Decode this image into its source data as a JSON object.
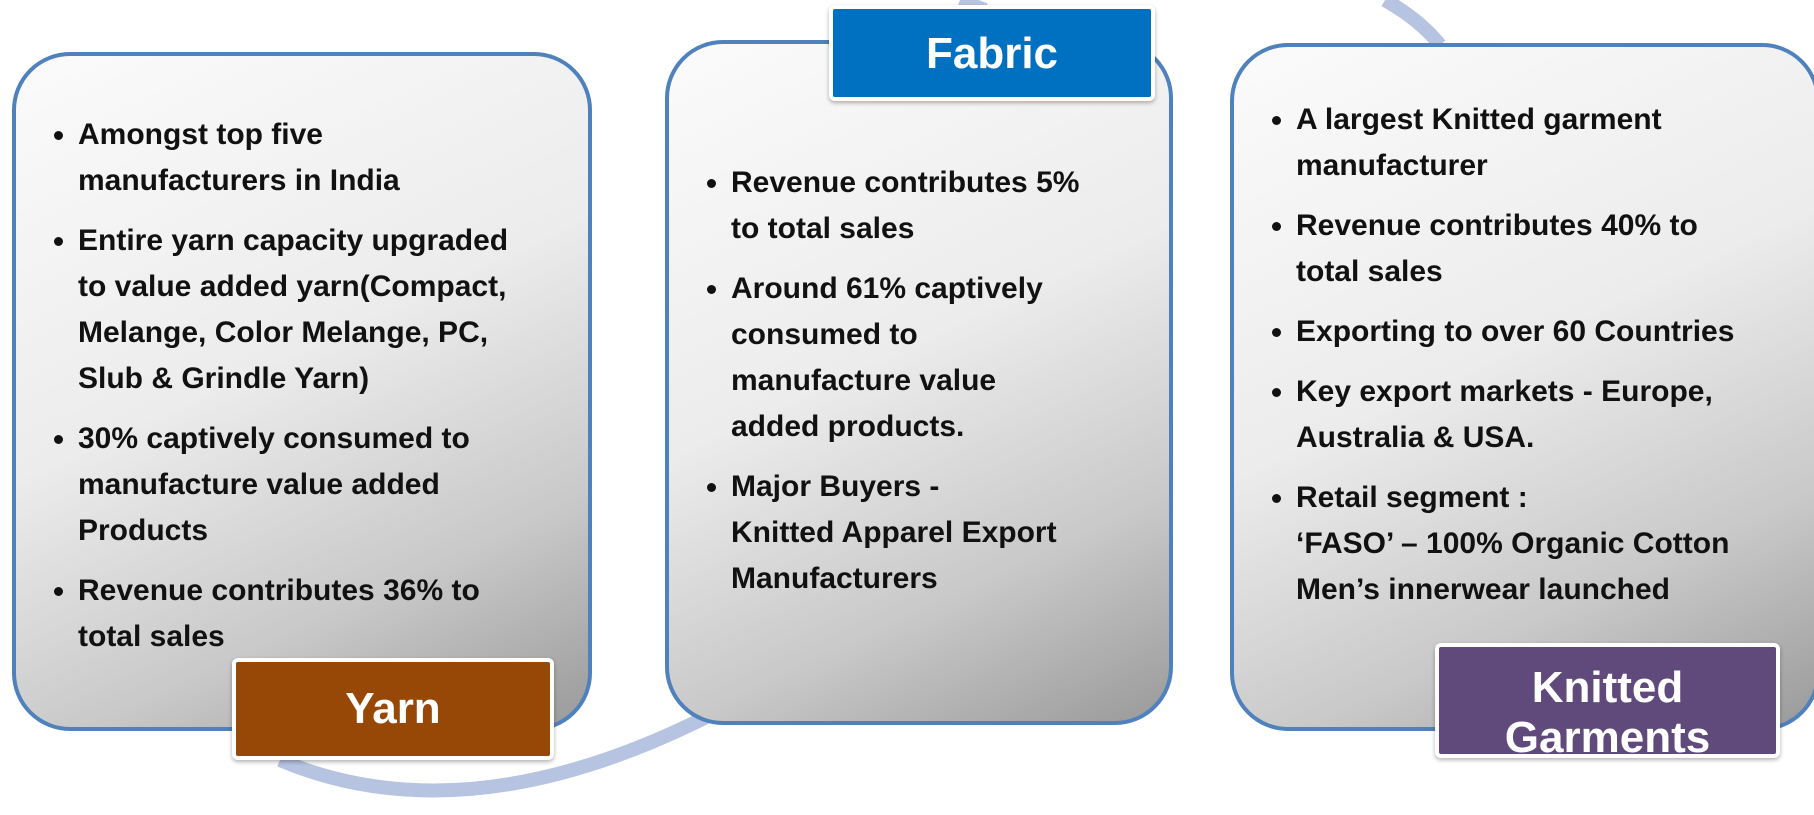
{
  "panels": [
    {
      "label": [
        "Yarn"
      ],
      "bullets": [
        [
          "Amongst top five",
          "manufacturers in India"
        ],
        [
          "Entire yarn capacity upgraded",
          "to value added yarn(Compact,",
          "Melange, Color Melange, PC,",
          "Slub & Grindle Yarn)"
        ],
        [
          "30%  captively  consumed to",
          "manufacture value added",
          "Products"
        ],
        [
          "Revenue contributes 36% to",
          "total sales"
        ]
      ]
    },
    {
      "label": [
        "Fabric"
      ],
      "bullets": [
        [
          "Revenue contributes  5%",
          "to  total sales"
        ],
        [
          "Around  61%  captively",
          "consumed to",
          "manufacture  value",
          "added products."
        ],
        [
          "Major Buyers -",
          "Knitted Apparel Export",
          "Manufacturers"
        ]
      ]
    },
    {
      "label": [
        "Knitted",
        "Garments"
      ],
      "bullets": [
        [
          "A largest Knitted garment",
          "manufacturer"
        ],
        [
          "Revenue contributes  40% to",
          "total sales"
        ],
        [
          "Exporting to over 60 Countries"
        ],
        [
          "Key export markets - Europe,",
          "Australia & USA."
        ],
        [
          "Retail segment :",
          "‘FASO’ – 100% Organic Cotton",
          "Men’s innerwear launched"
        ]
      ]
    }
  ]
}
